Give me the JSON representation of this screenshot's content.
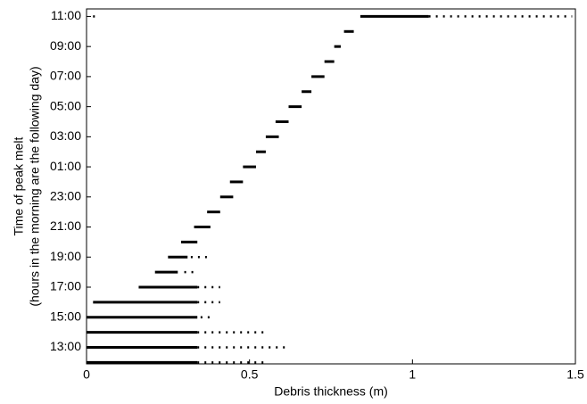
{
  "chart_data": {
    "type": "dot-range",
    "xlabel": "Debris thickness (m)",
    "ylabel": [
      "Time of peak melt",
      "(hours in the morning are the following day)"
    ],
    "xlim": [
      0,
      1.5
    ],
    "xticks": [
      0,
      0.5,
      1,
      1.5
    ],
    "ylim": [
      11.9,
      35.5
    ],
    "yticks": [
      {
        "value": 13,
        "label": "13:00"
      },
      {
        "value": 15,
        "label": "15:00"
      },
      {
        "value": 17,
        "label": "17:00"
      },
      {
        "value": 19,
        "label": "19:00"
      },
      {
        "value": 21,
        "label": "21:00"
      },
      {
        "value": 23,
        "label": "23:00"
      },
      {
        "value": 25,
        "label": "01:00"
      },
      {
        "value": 27,
        "label": "03:00"
      },
      {
        "value": 29,
        "label": "05:00"
      },
      {
        "value": 31,
        "label": "07:00"
      },
      {
        "value": 33,
        "label": "09:00"
      },
      {
        "value": 35,
        "label": "11:00"
      }
    ],
    "color": "#000000",
    "rows": [
      {
        "y": 12,
        "dense": [
          [
            0,
            0.34
          ]
        ],
        "sparse": [
          [
            0.34,
            0.55
          ]
        ]
      },
      {
        "y": 13,
        "dense": [
          [
            0,
            0.34
          ]
        ],
        "sparse": [
          [
            0.34,
            0.62
          ]
        ]
      },
      {
        "y": 14,
        "dense": [
          [
            0,
            0.34
          ]
        ],
        "sparse": [
          [
            0.34,
            0.55
          ]
        ]
      },
      {
        "y": 15,
        "dense": [
          [
            0,
            0.34
          ]
        ],
        "sparse": [
          [
            0.35,
            0.38
          ]
        ]
      },
      {
        "y": 16,
        "dense": [
          [
            0.02,
            0.34
          ]
        ],
        "sparse": [
          [
            0.34,
            0.41
          ]
        ]
      },
      {
        "y": 17,
        "dense": [
          [
            0.16,
            0.34
          ]
        ],
        "sparse": [
          [
            0.34,
            0.41
          ]
        ]
      },
      {
        "y": 18,
        "dense": [
          [
            0.21,
            0.28
          ]
        ],
        "sparse": [
          [
            0.3,
            0.33
          ]
        ]
      },
      {
        "y": 19,
        "dense": [
          [
            0.25,
            0.31
          ]
        ],
        "sparse": [
          [
            0.32,
            0.37
          ]
        ]
      },
      {
        "y": 20,
        "dense": [
          [
            0.29,
            0.34
          ]
        ],
        "sparse": []
      },
      {
        "y": 21,
        "dense": [
          [
            0.33,
            0.38
          ]
        ],
        "sparse": []
      },
      {
        "y": 22,
        "dense": [
          [
            0.37,
            0.41
          ]
        ],
        "sparse": []
      },
      {
        "y": 23,
        "dense": [
          [
            0.41,
            0.45
          ]
        ],
        "sparse": []
      },
      {
        "y": 24,
        "dense": [
          [
            0.44,
            0.48
          ]
        ],
        "sparse": []
      },
      {
        "y": 25,
        "dense": [
          [
            0.48,
            0.52
          ]
        ],
        "sparse": []
      },
      {
        "y": 26,
        "dense": [
          [
            0.52,
            0.55
          ]
        ],
        "sparse": []
      },
      {
        "y": 27,
        "dense": [
          [
            0.55,
            0.59
          ]
        ],
        "sparse": []
      },
      {
        "y": 28,
        "dense": [
          [
            0.58,
            0.62
          ]
        ],
        "sparse": []
      },
      {
        "y": 29,
        "dense": [
          [
            0.62,
            0.66
          ]
        ],
        "sparse": []
      },
      {
        "y": 30,
        "dense": [
          [
            0.66,
            0.69
          ]
        ],
        "sparse": []
      },
      {
        "y": 31,
        "dense": [
          [
            0.69,
            0.73
          ]
        ],
        "sparse": []
      },
      {
        "y": 32,
        "dense": [
          [
            0.73,
            0.76
          ]
        ],
        "sparse": []
      },
      {
        "y": 33,
        "dense": [
          [
            0.76,
            0.78
          ]
        ],
        "sparse": []
      },
      {
        "y": 34,
        "dense": [
          [
            0.79,
            0.82
          ]
        ],
        "sparse": []
      },
      {
        "y": 35,
        "dense": [
          [
            0.84,
            1.05
          ]
        ],
        "sparse": [
          [
            1.05,
            1.49
          ],
          [
            0.02,
            0.03
          ]
        ]
      }
    ]
  }
}
